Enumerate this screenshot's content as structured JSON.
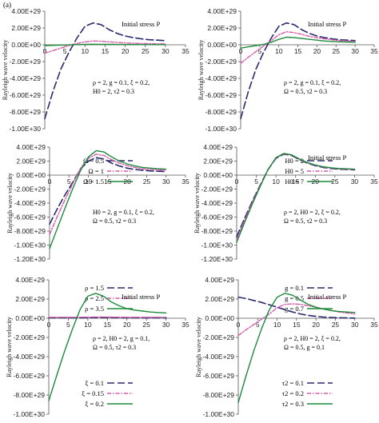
{
  "panel_label": "(a)",
  "colors": {
    "series1": "#2a2a6e",
    "series2": "#d45aa8",
    "series3": "#1e8a3c",
    "axis": "#555555"
  },
  "chart_data": [
    {
      "type": "line",
      "title": "Initial stress P",
      "ylabel": "Rayleigh wave velocity",
      "xlim": [
        0,
        35
      ],
      "ylim": [
        -1e+30,
        4e+29
      ],
      "xticks": [
        "0",
        "5",
        "10",
        "15",
        "20",
        "25",
        "30",
        "35"
      ],
      "yticks": [
        "4.00E+29",
        "2.00E+29",
        "0.00E+00",
        "-2.00E+29",
        "-4.00E+29",
        "-6.00E+29",
        "-8.00E+29",
        "-1.00E+30"
      ],
      "ytick_values": [
        4e+29,
        2e+29,
        0,
        -2e+29,
        -4e+29,
        -6e+29,
        -8e+29,
        -1e+30
      ],
      "annotation": [
        "ρ = 2,  g = 0.1, ξ = 0.2,",
        "H0 = 2, τ2 = 0.3"
      ],
      "x": [
        0,
        2,
        4,
        6,
        8,
        10,
        12,
        14,
        16,
        18,
        20,
        22,
        24,
        26,
        28,
        30
      ],
      "series": [
        {
          "name": "Ω = 0.5",
          "values": [
            -8.8e+29,
            -5.6e+29,
            -2.9e+29,
            -9e+28,
            8e+28,
            2.2e+29,
            2.6e+29,
            2.4e+29,
            1.8e+29,
            1.35e+29,
            1.05e+29,
            8.5e+28,
            7e+28,
            6e+28,
            5.5e+28,
            5e+28
          ]
        },
        {
          "name": "Ω = 1",
          "values": [
            -1e+29,
            -7e+28,
            -4e+28,
            -1e+28,
            1.5e+28,
            3.5e+28,
            4.5e+28,
            4.2e+28,
            3.5e+28,
            2.8e+28,
            2.2e+28,
            1.8e+28,
            1.5e+28,
            1.3e+28,
            1.1e+28,
            1e+28
          ]
        },
        {
          "name": "Ω = 1.5",
          "values": [
            -1e+28,
            -7e+27,
            -4e+27,
            -1e+27,
            2e+27,
            5e+27,
            7e+27,
            6e+27,
            5e+27,
            4e+27,
            3e+27,
            2.5e+27,
            2e+27,
            1.8e+27,
            1.5e+27,
            1.5e+27
          ]
        }
      ]
    },
    {
      "type": "line",
      "title": "Initial stress P",
      "ylabel": "Rayleigh wave velocity",
      "xlim": [
        0,
        35
      ],
      "ylim": [
        -1e+30,
        4e+29
      ],
      "xticks": [
        "0",
        "5",
        "10",
        "15",
        "20",
        "25",
        "30",
        "35"
      ],
      "yticks": [
        "4.00E+29",
        "2.00E+29",
        "0.00E+00",
        "-2.00E+29",
        "-4.00E+29",
        "-6.00E+29",
        "-8.00E+29",
        "-1.00E+30"
      ],
      "ytick_values": [
        4e+29,
        2e+29,
        0,
        -2e+29,
        -4e+29,
        -6e+29,
        -8e+29,
        -1e+30
      ],
      "annotation": [
        "ρ = 2,  g = 0.1, ξ = 0.2,",
        "Ω = 0.5, τ2 = 0.3"
      ],
      "x": [
        0,
        2,
        4,
        6,
        8,
        10,
        12,
        14,
        16,
        18,
        20,
        22,
        24,
        26,
        28,
        30
      ],
      "series": [
        {
          "name": "H0 = 2",
          "values": [
            -8.8e+29,
            -5.6e+29,
            -2.9e+29,
            -9e+28,
            8e+28,
            2.2e+29,
            2.6e+29,
            2.4e+29,
            1.8e+29,
            1.35e+29,
            1.05e+29,
            8.5e+28,
            7e+28,
            6e+28,
            5.5e+28,
            5e+28
          ]
        },
        {
          "name": "H0 = 5",
          "values": [
            -2.2e+29,
            -1.5e+29,
            -8e+28,
            -1.5e+28,
            5e+28,
            1.2e+29,
            1.55e+29,
            1.45e+29,
            1.25e+29,
            1e+29,
            8.5e+28,
            7e+28,
            6e+28,
            5e+28,
            4.5e+28,
            4e+28
          ]
        },
        {
          "name": "H0 = 7",
          "values": [
            -4e+28,
            -2.5e+28,
            -1e+28,
            5e+27,
            3e+28,
            6.5e+28,
            9e+28,
            8.5e+28,
            7.5e+28,
            6.5e+28,
            5.5e+28,
            4.5e+28,
            4e+28,
            3.5e+28,
            3.2e+28,
            3e+28
          ]
        }
      ]
    },
    {
      "type": "line",
      "title": "",
      "ylabel": "Rayleigh wave velocity",
      "xlim": [
        0,
        35
      ],
      "ylim": [
        -1.2e+30,
        4e+29
      ],
      "xticks": [
        "0",
        "5",
        "10",
        "15",
        "20",
        "25",
        "30",
        "35"
      ],
      "yticks": [
        "4.00E+29",
        "2.00E+29",
        "0.00E+00",
        "-2.00E+29",
        "-4.00E+29",
        "-6.00E+29",
        "-8.00E+29",
        "-1.00E+30",
        "-1.20E+30"
      ],
      "ytick_values": [
        4e+29,
        2e+29,
        0,
        -2e+29,
        -4e+29,
        -6e+29,
        -8e+29,
        -1e+30,
        -1.2e+30
      ],
      "annotation": [
        "H0 = 2,  g = 0.1, ξ = 0.2,",
        "Ω = 0.5, τ2 = 0.3"
      ],
      "x": [
        0,
        2,
        4,
        6,
        8,
        10,
        12,
        14,
        16,
        18,
        20,
        22,
        24,
        26,
        28,
        30
      ],
      "series": [
        {
          "name": "ρ = 1.5",
          "values": [
            -7e+29,
            -4.8e+29,
            -2.8e+29,
            -1e+29,
            9e+28,
            2e+29,
            2.5e+29,
            2.3e+29,
            1.7e+29,
            1.3e+29,
            1e+29,
            8e+28,
            7e+28,
            6e+28,
            5.5e+28,
            5e+28
          ]
        },
        {
          "name": "ρ = 2.5",
          "values": [
            -8.5e+29,
            -5.9e+29,
            -3.5e+29,
            -1.2e+29,
            1e+29,
            2.4e+29,
            3e+29,
            2.8e+29,
            2.2e+29,
            1.7e+29,
            1.35e+29,
            1.1e+29,
            9e+28,
            8e+28,
            7.5e+28,
            7e+28
          ]
        },
        {
          "name": "ρ = 3.5",
          "values": [
            -1.05e+30,
            -7.6e+29,
            -4.7e+29,
            -1.9e+29,
            7e+28,
            2.6e+29,
            3.5e+29,
            3.3e+29,
            2.6e+29,
            2e+29,
            1.6e+29,
            1.3e+29,
            1.1e+29,
            1e+29,
            9e+28,
            8.5e+28
          ]
        }
      ]
    },
    {
      "type": "line",
      "title": "Initial stress P",
      "ylabel": "Rayleigh wave velocity",
      "xlim": [
        0,
        35
      ],
      "ylim": [
        -1.2e+30,
        4e+29
      ],
      "xticks": [
        "0",
        "5",
        "10",
        "15",
        "20",
        "25",
        "30",
        "35"
      ],
      "yticks": [
        "4.00E+29",
        "2.00E+29",
        "0.00E+00",
        "-2.00E+29",
        "-4.00E+29",
        "-6.00E+29",
        "-8.00E+29",
        "-1.00E+30",
        "-1.20E+30"
      ],
      "ytick_values": [
        4e+29,
        2e+29,
        0,
        -2e+29,
        -4e+29,
        -6e+29,
        -8e+29,
        -1e+30,
        -1.2e+30
      ],
      "annotation": [
        "ρ = 2, H0 = 2, ξ = 0.2,",
        "Ω = 0.5, τ2 = 0.3"
      ],
      "x": [
        0,
        2,
        4,
        6,
        8,
        10,
        12,
        14,
        16,
        18,
        20,
        22,
        24,
        26,
        28,
        30
      ],
      "series": [
        {
          "name": "g = 0.1",
          "values": [
            -8.8e+29,
            -6.2e+29,
            -3.7e+29,
            -1.4e+29,
            8e+28,
            2.4e+29,
            3e+29,
            2.8e+29,
            2.2e+29,
            1.7e+29,
            1.35e+29,
            1.1e+29,
            9.5e+28,
            8.5e+28,
            8e+28,
            7.5e+28
          ]
        },
        {
          "name": "g = 0.5",
          "values": [
            -9.2e+29,
            -6.5e+29,
            -3.9e+29,
            -1.5e+29,
            8e+28,
            2.45e+29,
            3.05e+29,
            2.85e+29,
            2.25e+29,
            1.75e+29,
            1.4e+29,
            1.15e+29,
            1e+29,
            9e+28,
            8.5e+28,
            8e+28
          ]
        },
        {
          "name": "g = 0.7",
          "values": [
            -9.6e+29,
            -6.8e+29,
            -4.1e+29,
            -1.6e+29,
            8e+28,
            2.5e+29,
            3.1e+29,
            2.9e+29,
            2.3e+29,
            1.8e+29,
            1.45e+29,
            1.2e+29,
            1.05e+29,
            9.5e+28,
            9e+28,
            8.5e+28
          ]
        }
      ]
    },
    {
      "type": "line",
      "title": "Initial stress P",
      "ylabel": "Rayleigh wave velocity",
      "xlim": [
        0,
        35
      ],
      "ylim": [
        -1e+30,
        4e+29
      ],
      "xticks": [
        "0",
        "5",
        "10",
        "15",
        "20",
        "25",
        "30",
        "35"
      ],
      "yticks": [
        "4.00E+29",
        "2.00E+29",
        "0.00E+00",
        "-2.00E+29",
        "-4.00E+29",
        "-6.00E+29",
        "-8.00E+29",
        "-1.00E+30"
      ],
      "ytick_values": [
        4e+29,
        2e+29,
        0,
        -2e+29,
        -4e+29,
        -6e+29,
        -8e+29,
        -1e+30
      ],
      "annotation": [
        "ρ = 2, H0 = 2, g = 0.1,",
        "Ω = 0.5, τ2 = 0.3"
      ],
      "x": [
        0,
        2,
        4,
        6,
        8,
        10,
        12,
        14,
        16,
        18,
        20,
        22,
        24,
        26,
        28,
        30
      ],
      "series": [
        {
          "name": "ξ = 0.1",
          "values": [
            5e+27,
            5e+27,
            5e+27,
            5e+27,
            5e+27,
            6e+27,
            7e+27,
            7e+27,
            6e+27,
            6e+27,
            5e+27,
            5e+27,
            5e+27,
            5e+27,
            5e+27,
            5e+27
          ]
        },
        {
          "name": "ξ = 0.15",
          "values": [
            1e+28,
            1e+28,
            1e+28,
            1e+28,
            1.1e+28,
            1.2e+28,
            1.3e+28,
            1.3e+28,
            1.2e+28,
            1.1e+28,
            1e+28,
            1e+28,
            1e+28,
            1e+28,
            1e+28,
            1e+28
          ]
        },
        {
          "name": "ξ = 0.2",
          "values": [
            -8.6e+29,
            -6e+29,
            -3.5e+29,
            -1.2e+29,
            9e+28,
            2.3e+29,
            2.6e+29,
            2.3e+29,
            1.7e+29,
            1.3e+29,
            1e+29,
            8.5e+28,
            7.5e+28,
            6.5e+28,
            6e+28,
            5.5e+28
          ]
        }
      ]
    },
    {
      "type": "line",
      "title": "Initial stress P",
      "ylabel": "Rayleigh wave velocity",
      "xlim": [
        0,
        35
      ],
      "ylim": [
        -1e+30,
        4e+29
      ],
      "xticks": [
        "0",
        "5",
        "10",
        "15",
        "20",
        "25",
        "30",
        "35"
      ],
      "yticks": [
        "4.00E+29",
        "2.00E+29",
        "0.00E+00",
        "-2.00E+29",
        "-4.00E+29",
        "-6.00E+29",
        "-8.00E+29",
        "-1.00E+30"
      ],
      "ytick_values": [
        4e+29,
        2e+29,
        0,
        -2e+29,
        -4e+29,
        -6e+29,
        -8e+29,
        -1e+30
      ],
      "annotation": [
        "ρ = 2, H0 = 2, ξ = 0.2,",
        "Ω = 0.5, g = 0.1"
      ],
      "x": [
        0,
        2,
        4,
        6,
        8,
        10,
        12,
        14,
        16,
        18,
        20,
        22,
        24,
        26,
        28,
        30
      ],
      "series": [
        {
          "name": "τ2 = 0.1",
          "values": [
            2.2e+29,
            2.05e+29,
            1.85e+29,
            1.65e+29,
            1.4e+29,
            1.15e+29,
            9e+28,
            6.5e+28,
            4.5e+28,
            3e+28,
            2e+28,
            1.2e+28,
            8e+27,
            5e+27,
            3e+27,
            2e+27
          ]
        },
        {
          "name": "τ2 = 0.2",
          "values": [
            -1.8e+29,
            -1.2e+29,
            -6.5e+28,
            -1e+28,
            4.5e+28,
            1.1e+29,
            1.45e+29,
            1.5e+29,
            1.45e+29,
            1.3e+29,
            1.15e+29,
            9.5e+28,
            8e+28,
            6.5e+28,
            5.5e+28,
            4.5e+28
          ]
        },
        {
          "name": "τ2 = 0.3",
          "values": [
            -8.8e+29,
            -6e+29,
            -3.4e+29,
            -1.1e+29,
            9e+28,
            2.2e+29,
            2.6e+29,
            2.4e+29,
            1.9e+29,
            1.45e+29,
            1.15e+29,
            9.5e+28,
            8e+28,
            7e+28,
            6.5e+28,
            6e+28
          ]
        }
      ]
    }
  ]
}
